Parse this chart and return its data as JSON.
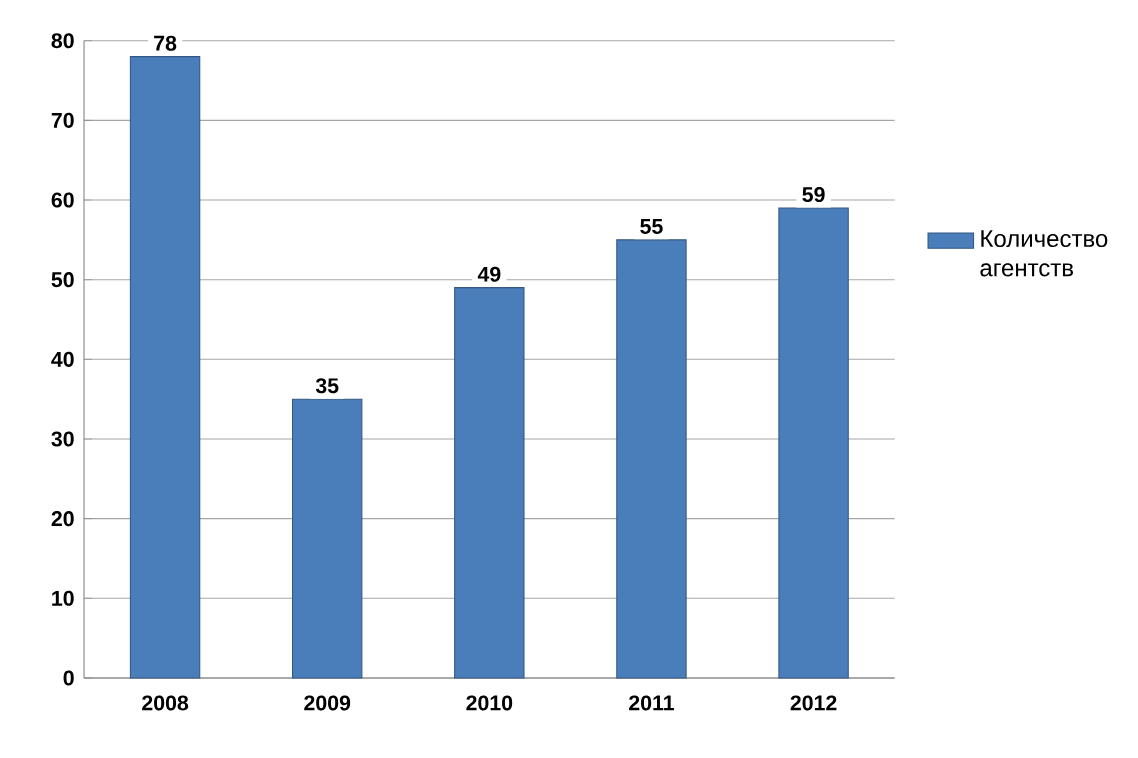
{
  "chart_data": {
    "type": "bar",
    "categories": [
      "2008",
      "2009",
      "2010",
      "2011",
      "2012"
    ],
    "series": [
      {
        "name": "Количество агентств",
        "color": "#4a7ebb",
        "values": [
          78,
          35,
          49,
          55,
          59
        ]
      }
    ],
    "ylim": [
      0,
      80
    ],
    "yticks": [
      0,
      10,
      20,
      30,
      40,
      50,
      60,
      70,
      80
    ],
    "grid": "y",
    "legend": "right",
    "data_labels": true
  }
}
